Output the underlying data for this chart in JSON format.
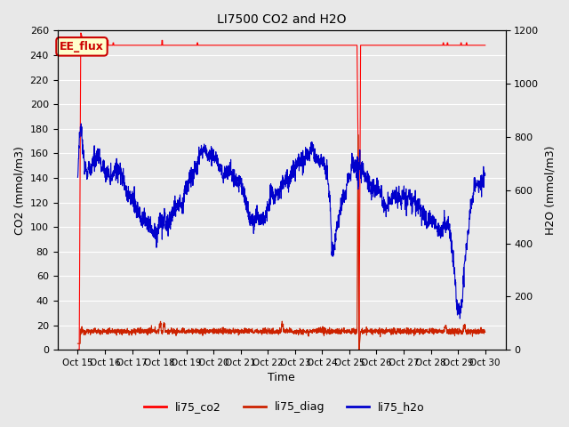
{
  "title": "LI7500 CO2 and H2O",
  "xlabel": "Time",
  "ylabel_left": "CO2 (mmol/m3)",
  "ylabel_right": "H2O (mmol/m3)",
  "annotation_text": "EE_flux",
  "annotation_color": "#cc0000",
  "annotation_bg": "#ffffcc",
  "ylim_left": [
    0,
    260
  ],
  "ylim_right": [
    0,
    1200
  ],
  "yticks_left": [
    0,
    20,
    40,
    60,
    80,
    100,
    120,
    140,
    160,
    180,
    200,
    220,
    240,
    260
  ],
  "yticks_right": [
    0,
    200,
    400,
    600,
    800,
    1000,
    1200
  ],
  "xtick_labels": [
    "Oct 15",
    "Oct 16",
    "Oct 17",
    "Oct 18",
    "Oct 19",
    "Oct 20",
    "Oct 21",
    "Oct 22",
    "Oct 23",
    "Oct 24",
    "Oct 25",
    "Oct 26",
    "Oct 27",
    "Oct 28",
    "Oct 29",
    "Oct 30"
  ],
  "legend_labels": [
    "li75_co2",
    "li75_diag",
    "li75_h2o"
  ],
  "legend_colors": [
    "#ff0000",
    "#cc2200",
    "#0000cc"
  ],
  "grid_color": "#ffffff",
  "bg_color": "#e8e8e8",
  "fig_bg_color": "#e8e8e8",
  "co2_color": "#ff0000",
  "diag_color": "#cc2200",
  "h2o_color": "#0000cc",
  "figsize": [
    6.4,
    4.8
  ],
  "dpi": 100
}
